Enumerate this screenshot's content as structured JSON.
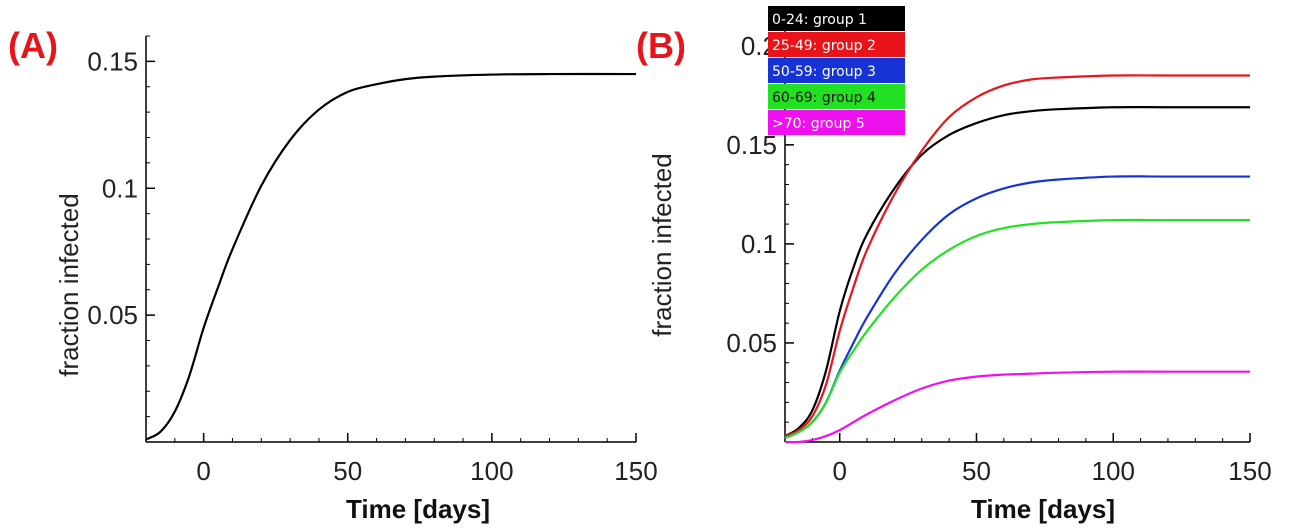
{
  "chart_data": [
    {
      "type": "line",
      "panel_label": "(A)",
      "xlabel": "Time [days]",
      "ylabel": "fraction infected",
      "xlim": [
        -20,
        150
      ],
      "ylim": [
        0,
        0.16
      ],
      "xticks": [
        0,
        50,
        100,
        150
      ],
      "xtick_labels": [
        "0",
        "50",
        "100",
        "150"
      ],
      "yticks": [
        0.05,
        0.1,
        0.15
      ],
      "ytick_labels": [
        "0.05",
        "0.1",
        "0.15"
      ],
      "grid": false,
      "series": [
        {
          "color": "#000000",
          "x": [
            -20,
            -15,
            -10,
            -5,
            0,
            5,
            10,
            20,
            30,
            40,
            50,
            60,
            70,
            80,
            100,
            120,
            150
          ],
          "y": [
            0.001,
            0.004,
            0.012,
            0.026,
            0.045,
            0.061,
            0.076,
            0.101,
            0.119,
            0.131,
            0.138,
            0.141,
            0.143,
            0.144,
            0.1448,
            0.145,
            0.145
          ]
        }
      ]
    },
    {
      "type": "line",
      "panel_label": "(B)",
      "xlabel": "Time [days]",
      "ylabel": "fraction infected",
      "xlim": [
        -20,
        150
      ],
      "ylim": [
        0,
        0.21
      ],
      "xticks": [
        0,
        50,
        100,
        150
      ],
      "xtick_labels": [
        "0",
        "50",
        "100",
        "150"
      ],
      "yticks": [
        0.05,
        0.1,
        0.15,
        0.2
      ],
      "ytick_labels": [
        "0.05",
        "0.1",
        "0.15",
        "0.2"
      ],
      "grid": false,
      "legend_position": "top-left",
      "series": [
        {
          "name": "0-24: group 1",
          "color": "#000000",
          "x": [
            -20,
            -15,
            -10,
            -5,
            0,
            5,
            10,
            20,
            30,
            40,
            50,
            60,
            70,
            80,
            100,
            120,
            150
          ],
          "y": [
            0.003,
            0.007,
            0.016,
            0.036,
            0.066,
            0.088,
            0.105,
            0.128,
            0.145,
            0.155,
            0.161,
            0.165,
            0.167,
            0.168,
            0.169,
            0.169,
            0.169
          ]
        },
        {
          "name": "25-49: group 2",
          "color": "#e8141a",
          "x": [
            -20,
            -15,
            -10,
            -5,
            0,
            5,
            10,
            20,
            30,
            40,
            50,
            60,
            70,
            80,
            100,
            120,
            150
          ],
          "y": [
            0.003,
            0.006,
            0.013,
            0.029,
            0.056,
            0.078,
            0.097,
            0.125,
            0.147,
            0.164,
            0.174,
            0.18,
            0.183,
            0.184,
            0.185,
            0.185,
            0.185
          ]
        },
        {
          "name": "50-59: group 3",
          "color": "#1634d6",
          "x": [
            -20,
            -15,
            -10,
            -5,
            0,
            5,
            10,
            20,
            30,
            40,
            50,
            60,
            70,
            80,
            100,
            120,
            150
          ],
          "y": [
            0.002,
            0.005,
            0.01,
            0.02,
            0.036,
            0.05,
            0.063,
            0.085,
            0.102,
            0.115,
            0.123,
            0.128,
            0.131,
            0.1325,
            0.134,
            0.134,
            0.134
          ]
        },
        {
          "name": "60-69: group 4",
          "color": "#22e022",
          "x": [
            -20,
            -15,
            -10,
            -5,
            0,
            5,
            10,
            20,
            30,
            40,
            50,
            60,
            70,
            80,
            100,
            120,
            150
          ],
          "y": [
            0.002,
            0.005,
            0.01,
            0.02,
            0.035,
            0.046,
            0.056,
            0.073,
            0.087,
            0.097,
            0.104,
            0.108,
            0.11,
            0.111,
            0.112,
            0.112,
            0.112
          ]
        },
        {
          "name": ">70: group 5",
          "color": "#ee10ee",
          "x": [
            -20,
            -15,
            -10,
            -5,
            0,
            5,
            10,
            20,
            30,
            40,
            50,
            60,
            70,
            80,
            100,
            120,
            150
          ],
          "y": [
            0.0,
            0.0,
            0.001,
            0.003,
            0.006,
            0.01,
            0.014,
            0.021,
            0.027,
            0.031,
            0.033,
            0.034,
            0.0345,
            0.035,
            0.0355,
            0.0355,
            0.0355
          ]
        }
      ]
    }
  ]
}
